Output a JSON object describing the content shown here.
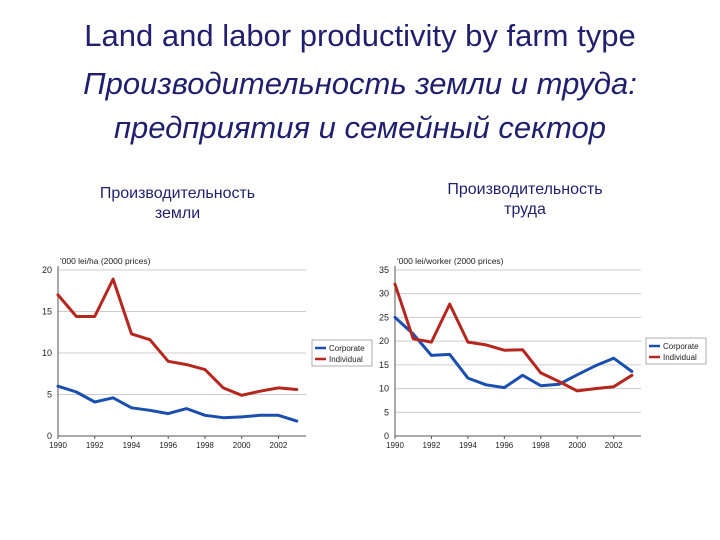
{
  "title": "Land and labor productivity by farm type",
  "title_ru_line1": "Производительность земли и труда:",
  "title_ru_line2": "предприятия и семейный сектор",
  "panel1_heading_line1": "Производительность",
  "panel1_heading_line2": "земли",
  "panel2_heading_line1": "Производительность",
  "panel2_heading_line2": "труда",
  "colors": {
    "corporate": "#1a4fb0",
    "individual": "#b5271e",
    "grid": "#cccccc",
    "text": "#1f1f6e"
  },
  "chart_data": [
    {
      "type": "line",
      "ylabel": "'000 lei/ha (2000 prices)",
      "ylim": [
        0,
        20
      ],
      "yticks": [
        0,
        5,
        10,
        15,
        20
      ],
      "xlim": [
        1990,
        2003.5
      ],
      "xticks": [
        1990,
        1992,
        1994,
        1996,
        1998,
        2000,
        2002
      ],
      "x": [
        1990,
        1991,
        1992,
        1993,
        1994,
        1995,
        1996,
        1997,
        1998,
        1999,
        2000,
        2001,
        2002,
        2003
      ],
      "series": [
        {
          "name": "Corporate",
          "values": [
            6.0,
            5.3,
            4.1,
            4.6,
            3.4,
            3.1,
            2.7,
            3.3,
            2.5,
            2.2,
            2.3,
            2.5,
            2.5,
            1.8
          ]
        },
        {
          "name": "Individual",
          "values": [
            17.0,
            14.4,
            14.4,
            18.9,
            12.3,
            11.6,
            9.0,
            8.6,
            8.0,
            5.8,
            4.9,
            5.4,
            5.8,
            5.6
          ]
        }
      ],
      "legend": "right"
    },
    {
      "type": "line",
      "ylabel": "'000 lei/worker (2000 prices)",
      "ylim": [
        0,
        35
      ],
      "yticks": [
        0,
        5,
        10,
        15,
        20,
        25,
        30,
        35
      ],
      "xlim": [
        1990,
        2003.5
      ],
      "xticks": [
        1990,
        1992,
        1994,
        1996,
        1998,
        2000,
        2002
      ],
      "x": [
        1990,
        1991,
        1992,
        1993,
        1994,
        1995,
        1996,
        1997,
        1998,
        1999,
        2000,
        2001,
        2002,
        2003
      ],
      "series": [
        {
          "name": "Corporate",
          "values": [
            25.0,
            21.5,
            17.0,
            17.2,
            12.2,
            10.8,
            10.2,
            12.8,
            10.6,
            10.9,
            12.9,
            14.8,
            16.4,
            13.6
          ]
        },
        {
          "name": "Individual",
          "values": [
            32.0,
            20.5,
            19.8,
            27.8,
            19.8,
            19.2,
            18.1,
            18.2,
            13.3,
            11.5,
            9.5,
            10.0,
            10.4,
            12.8
          ]
        }
      ],
      "legend": "right"
    }
  ]
}
